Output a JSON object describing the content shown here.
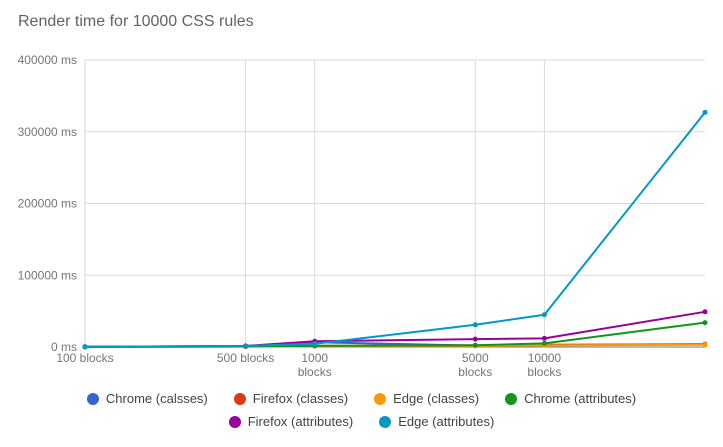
{
  "chart_data": {
    "type": "line",
    "title": "Render time for 10000 CSS rules",
    "x_scale": "log",
    "xlim": [
      100,
      50000
    ],
    "ylim": [
      0,
      400000
    ],
    "x": [
      100,
      500,
      1000,
      5000,
      10000,
      50000
    ],
    "x_tick_labels": [
      {
        "value": 100,
        "lines": [
          "100 blocks"
        ]
      },
      {
        "value": 500,
        "lines": [
          "500 blocks"
        ]
      },
      {
        "value": 1000,
        "lines": [
          "1000",
          "blocks"
        ]
      },
      {
        "value": 5000,
        "lines": [
          "5000",
          "blocks"
        ]
      },
      {
        "value": 10000,
        "lines": [
          "10000",
          "blocks"
        ]
      }
    ],
    "y_ticks": [
      {
        "value": 0,
        "label": "0 ms"
      },
      {
        "value": 100000,
        "label": "100000 ms"
      },
      {
        "value": 200000,
        "label": "200000 ms"
      },
      {
        "value": 300000,
        "label": "300000 ms"
      },
      {
        "value": 400000,
        "label": "400000 ms"
      }
    ],
    "grid": true,
    "legend_position": "bottom",
    "colors": {
      "grid_line": "#dadada",
      "baseline": "#757575",
      "axis_text": "#757575"
    },
    "series": [
      {
        "name": "Chrome (calsses)",
        "color": "#3366cc",
        "values": [
          200,
          1200,
          6500,
          2000,
          3000,
          3500
        ]
      },
      {
        "name": "Firefox (classes)",
        "color": "#dc3912",
        "values": [
          150,
          700,
          1800,
          2200,
          2800,
          4000
        ]
      },
      {
        "name": "Edge (classes)",
        "color": "#ff9900",
        "values": [
          100,
          500,
          1200,
          1500,
          2200,
          3000
        ]
      },
      {
        "name": "Chrome (attributes)",
        "color": "#109618",
        "values": [
          200,
          800,
          1500,
          2500,
          5000,
          34000
        ]
      },
      {
        "name": "Firefox (attributes)",
        "color": "#990099",
        "values": [
          300,
          1500,
          8000,
          11000,
          12000,
          49000
        ]
      },
      {
        "name": "Edge (attributes)",
        "color": "#0099c6",
        "values": [
          300,
          1500,
          4500,
          31000,
          45000,
          327000
        ]
      }
    ]
  }
}
